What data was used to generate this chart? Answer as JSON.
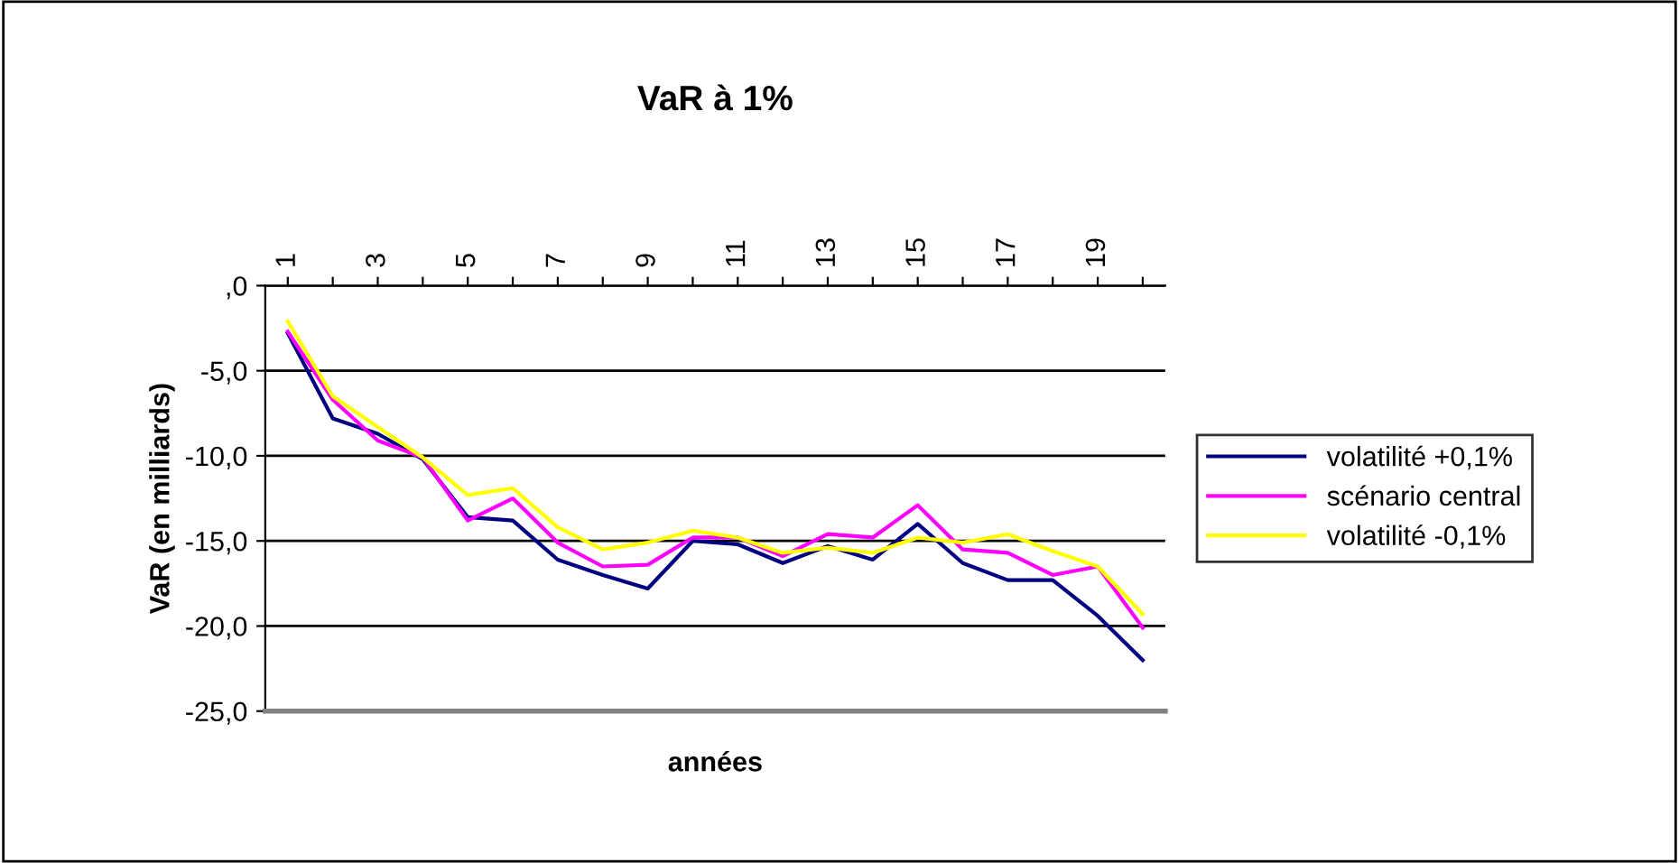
{
  "chart_data": {
    "type": "line",
    "title": "VaR à 1%",
    "xlabel": "années",
    "ylabel": "VaR (en milliards)",
    "categories": [
      "1",
      null,
      "3",
      null,
      "5",
      null,
      "7",
      null,
      "9",
      null,
      "11",
      null,
      "13",
      null,
      "15",
      null,
      "17",
      null,
      "19",
      null
    ],
    "series": [
      {
        "name": "volatilité +0,1%",
        "color": "#000080",
        "values": [
          -2.8,
          -7.8,
          -8.7,
          -10.2,
          -13.6,
          -13.8,
          -16.1,
          -17.0,
          -17.8,
          -15.0,
          -15.2,
          -16.3,
          -15.3,
          -16.1,
          -14.0,
          -16.3,
          -17.3,
          -17.3,
          -19.4,
          -22.0
        ]
      },
      {
        "name": "scénario central",
        "color": "#ff00ff",
        "values": [
          -2.7,
          -6.7,
          -9.1,
          -10.1,
          -13.8,
          -12.5,
          -15.1,
          -16.5,
          -16.4,
          -14.8,
          -14.8,
          -15.9,
          -14.6,
          -14.8,
          -12.9,
          -15.5,
          -15.7,
          -17.0,
          -16.5,
          -20.1
        ]
      },
      {
        "name": "volatilité -0,1%",
        "color": "#ffff00",
        "values": [
          -2.1,
          -6.5,
          -8.3,
          -10.1,
          -12.3,
          -11.9,
          -14.2,
          -15.5,
          -15.1,
          -14.4,
          -14.8,
          -15.7,
          -15.4,
          -15.7,
          -14.8,
          -15.1,
          -14.6,
          -15.6,
          -16.5,
          -19.3
        ]
      }
    ],
    "ylim": [
      -25,
      0
    ],
    "yticks": [
      {
        "value": 0,
        "label": ",0"
      },
      {
        "value": -5,
        "label": "-5,0"
      },
      {
        "value": -10,
        "label": "-10,0"
      },
      {
        "value": -15,
        "label": "-15,0"
      },
      {
        "value": -20,
        "label": "-20,0"
      },
      {
        "value": -25,
        "label": "-25,0"
      }
    ],
    "grid": "y",
    "legend": "right",
    "marker": "none",
    "line_style": "solid"
  }
}
